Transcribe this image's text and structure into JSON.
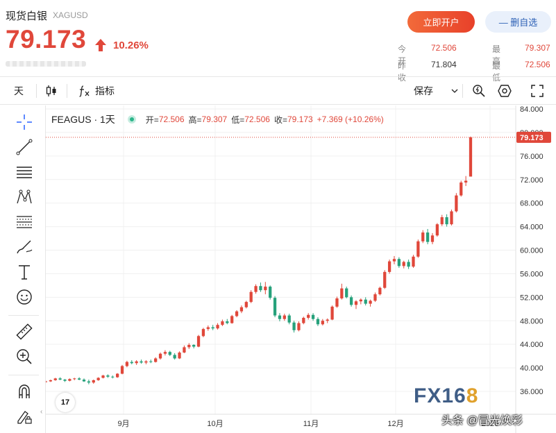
{
  "header": {
    "name": "现货白银",
    "symbol": "XAGUSD",
    "price": "79.173",
    "change_pct": "10.26%",
    "open_account_button": "立即开户",
    "remove_watchlist_button": "— 删自选",
    "stats": {
      "today_open_label": "今开",
      "today_open": "72.506",
      "prev_close_label": "昨收",
      "prev_close": "71.804",
      "high_label": "最高",
      "high": "79.307",
      "low_label": "最低",
      "low": "72.506"
    }
  },
  "toolbar": {
    "interval": "天",
    "indicators": "指标",
    "save": "保存"
  },
  "legend": {
    "title": "FEAGUS · 1天",
    "open_label": "开=",
    "open": "72.506",
    "high_label": "高=",
    "high": "79.307",
    "low_label": "低=",
    "low": "72.506",
    "close_label": "收=",
    "close": "79.173",
    "change": "+7.369 (+10.26%)"
  },
  "watermarks": {
    "fx_a": "FX16",
    "fx_b": "8",
    "toutiao": "头条 @冒光焕彩",
    "tv": "17"
  },
  "colors": {
    "up": "#e0473a",
    "down": "#26a17b",
    "accent": "#e0473a",
    "brand_blue": "#2b5fb5"
  },
  "chart_data": {
    "type": "candlestick",
    "title": "FEAGUS · 1天",
    "ylim": [
      34,
      86
    ],
    "y_ticks": [
      "84.000",
      "80.000",
      "76.000",
      "72.000",
      "68.000",
      "64.000",
      "60.000",
      "56.000",
      "52.000",
      "48.000",
      "44.000",
      "40.000",
      "36.000"
    ],
    "x_tick_labels": [
      "9月",
      "10月",
      "11月",
      "12月",
      "2026"
    ],
    "last_price_label": "79.173",
    "last_price": 79.173,
    "candles": [
      [
        37.6,
        37.8,
        37.5,
        37.7
      ],
      [
        37.7,
        38.0,
        37.6,
        37.9
      ],
      [
        37.9,
        38.3,
        37.8,
        38.2
      ],
      [
        38.2,
        38.4,
        37.9,
        38.0
      ],
      [
        38.0,
        38.1,
        37.6,
        37.8
      ],
      [
        37.8,
        38.2,
        37.7,
        38.1
      ],
      [
        38.1,
        38.3,
        37.9,
        38.2
      ],
      [
        38.2,
        38.4,
        37.9,
        38.0
      ],
      [
        38.0,
        38.2,
        37.6,
        37.7
      ],
      [
        37.7,
        38.0,
        37.2,
        37.5
      ],
      [
        37.5,
        38.0,
        37.3,
        37.9
      ],
      [
        37.9,
        38.4,
        37.8,
        38.3
      ],
      [
        38.3,
        38.8,
        38.2,
        38.7
      ],
      [
        38.7,
        38.9,
        38.3,
        38.5
      ],
      [
        38.5,
        38.7,
        38.2,
        38.4
      ],
      [
        38.4,
        39.1,
        38.3,
        39.0
      ],
      [
        39.0,
        40.5,
        38.9,
        40.3
      ],
      [
        40.3,
        41.2,
        40.1,
        41.0
      ],
      [
        41.0,
        41.3,
        40.6,
        40.8
      ],
      [
        40.8,
        41.3,
        40.5,
        41.1
      ],
      [
        41.1,
        41.4,
        40.7,
        40.9
      ],
      [
        40.9,
        41.3,
        40.6,
        41.1
      ],
      [
        41.1,
        41.4,
        40.8,
        41.0
      ],
      [
        41.0,
        41.8,
        40.9,
        41.6
      ],
      [
        41.6,
        42.6,
        41.4,
        42.4
      ],
      [
        42.4,
        43.0,
        42.1,
        42.7
      ],
      [
        42.7,
        42.9,
        42.0,
        42.2
      ],
      [
        42.2,
        42.5,
        41.4,
        41.6
      ],
      [
        41.6,
        42.8,
        41.5,
        42.6
      ],
      [
        42.6,
        43.8,
        42.5,
        43.5
      ],
      [
        43.5,
        44.2,
        43.2,
        43.9
      ],
      [
        43.9,
        44.0,
        43.3,
        43.6
      ],
      [
        43.6,
        45.6,
        43.5,
        45.4
      ],
      [
        45.4,
        46.8,
        45.2,
        46.6
      ],
      [
        46.6,
        47.2,
        46.3,
        46.9
      ],
      [
        46.9,
        47.3,
        46.4,
        46.7
      ],
      [
        46.7,
        47.6,
        46.5,
        47.3
      ],
      [
        47.3,
        48.2,
        47.1,
        47.9
      ],
      [
        47.9,
        48.3,
        47.4,
        47.6
      ],
      [
        47.6,
        49.0,
        47.5,
        48.8
      ],
      [
        48.8,
        49.8,
        48.6,
        49.6
      ],
      [
        49.6,
        50.6,
        49.3,
        50.3
      ],
      [
        50.3,
        51.4,
        50.1,
        51.2
      ],
      [
        51.2,
        53.2,
        51.0,
        52.9
      ],
      [
        52.9,
        54.2,
        52.6,
        53.9
      ],
      [
        53.9,
        54.5,
        52.9,
        53.2
      ],
      [
        53.2,
        54.6,
        52.5,
        53.8
      ],
      [
        53.8,
        54.0,
        51.6,
        51.9
      ],
      [
        51.9,
        52.2,
        48.6,
        48.9
      ],
      [
        48.9,
        49.3,
        47.9,
        48.3
      ],
      [
        48.3,
        49.2,
        48.0,
        48.9
      ],
      [
        48.9,
        49.2,
        47.4,
        47.7
      ],
      [
        47.7,
        48.0,
        46.0,
        46.4
      ],
      [
        46.4,
        47.9,
        46.2,
        47.6
      ],
      [
        47.6,
        48.7,
        47.4,
        48.5
      ],
      [
        48.5,
        49.3,
        48.2,
        49.0
      ],
      [
        49.0,
        49.3,
        48.0,
        48.3
      ],
      [
        48.3,
        48.6,
        47.1,
        47.4
      ],
      [
        47.4,
        48.3,
        47.2,
        48.0
      ],
      [
        48.0,
        48.4,
        47.6,
        48.2
      ],
      [
        48.2,
        50.6,
        48.1,
        50.4
      ],
      [
        50.4,
        52.1,
        50.2,
        51.8
      ],
      [
        51.8,
        54.3,
        51.6,
        53.5
      ],
      [
        53.5,
        53.8,
        51.8,
        52.0
      ],
      [
        52.0,
        52.3,
        50.4,
        50.7
      ],
      [
        50.7,
        51.5,
        50.0,
        51.3
      ],
      [
        51.3,
        51.8,
        50.8,
        51.6
      ],
      [
        51.6,
        52.0,
        50.6,
        50.9
      ],
      [
        50.9,
        51.6,
        50.4,
        51.4
      ],
      [
        51.4,
        52.8,
        51.2,
        52.5
      ],
      [
        52.5,
        53.8,
        52.3,
        53.6
      ],
      [
        53.6,
        56.6,
        53.4,
        56.3
      ],
      [
        56.3,
        58.4,
        56.0,
        58.1
      ],
      [
        58.1,
        59.0,
        57.6,
        58.5
      ],
      [
        58.5,
        58.8,
        57.0,
        57.3
      ],
      [
        57.3,
        58.2,
        56.9,
        58.0
      ],
      [
        58.0,
        58.4,
        56.8,
        57.2
      ],
      [
        57.2,
        59.2,
        57.0,
        58.9
      ],
      [
        58.9,
        61.8,
        58.7,
        61.5
      ],
      [
        61.5,
        63.4,
        61.2,
        63.0
      ],
      [
        63.0,
        63.6,
        61.0,
        61.4
      ],
      [
        61.4,
        62.9,
        61.0,
        62.5
      ],
      [
        62.5,
        64.6,
        62.3,
        64.4
      ],
      [
        64.4,
        66.0,
        64.1,
        65.6
      ],
      [
        65.6,
        66.1,
        64.0,
        64.4
      ],
      [
        64.4,
        66.9,
        64.2,
        66.6
      ],
      [
        66.6,
        69.7,
        66.4,
        69.3
      ],
      [
        69.3,
        71.8,
        69.1,
        71.5
      ],
      [
        71.5,
        72.6,
        70.9,
        71.8
      ],
      [
        72.506,
        79.307,
        72.506,
        79.173
      ]
    ]
  }
}
